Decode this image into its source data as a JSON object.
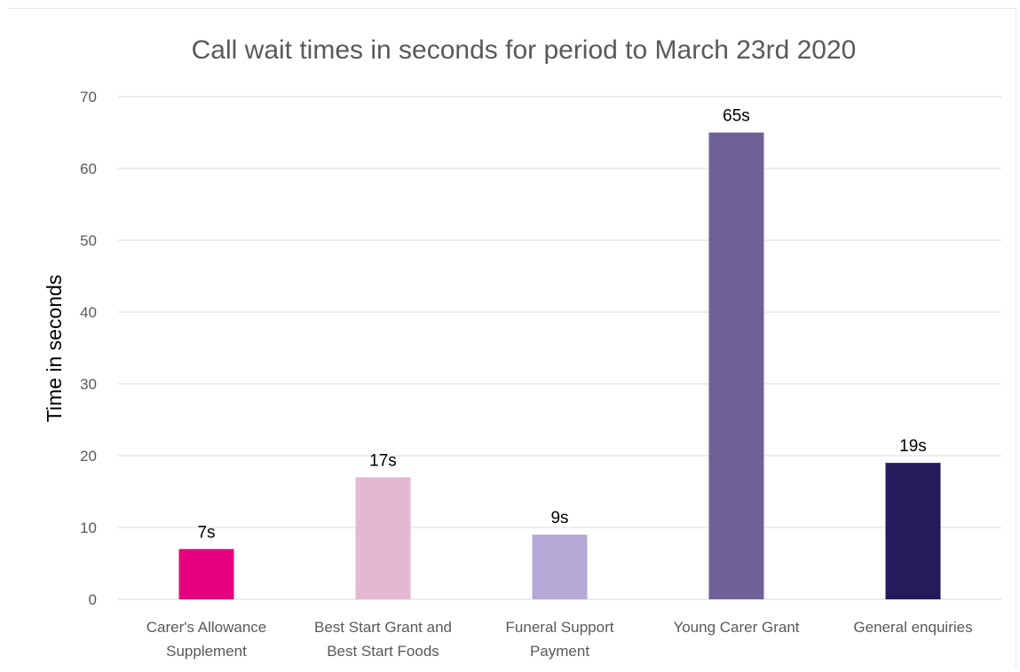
{
  "chart_data": {
    "type": "bar",
    "title": "Call wait times in seconds for period to March 23rd 2020",
    "xlabel": "",
    "ylabel": "Time in seconds",
    "categories": [
      [
        "Carer's Allowance",
        "Supplement"
      ],
      [
        "Best Start Grant and",
        "Best Start Foods"
      ],
      [
        "Funeral Support",
        "Payment"
      ],
      [
        "Young Carer Grant"
      ],
      [
        "General enquiries"
      ]
    ],
    "values": [
      7,
      17,
      9,
      65,
      19
    ],
    "data_labels": [
      "7s",
      "17s",
      "9s",
      "65s",
      "19s"
    ],
    "colors": [
      "#e6007e",
      "#e5b8d2",
      "#b4a9d6",
      "#6f6198",
      "#251a5c"
    ],
    "ylim": [
      0,
      70
    ],
    "yticks": [
      "0",
      "10",
      "20",
      "30",
      "40",
      "50",
      "60",
      "70"
    ],
    "grid": true,
    "legend": "none"
  }
}
